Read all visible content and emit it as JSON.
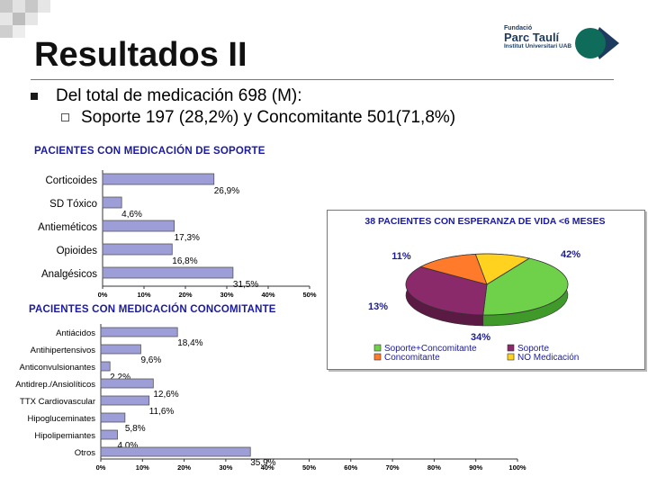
{
  "slide": {
    "title": "Resultados II",
    "bullet1": "Del total de medicación 698 (M):",
    "bullet2": "Soporte 197 (28,2%) y  Concomitante 501(71,8%)"
  },
  "logo": {
    "line1": "Fundació",
    "line2": "Parc Taulí",
    "line3": "Institut Universitari UAB",
    "colors": {
      "teal": "#0f6b5a",
      "navy": "#1d3a5f"
    }
  },
  "chart_data": [
    {
      "type": "bar",
      "orientation": "horizontal",
      "title": "PACIENTES CON MEDICACIÓN DE SOPORTE",
      "categories": [
        "Corticoides",
        "SD Tóxico",
        "Antieméticos",
        "Opioides",
        "Analgésicos"
      ],
      "values": [
        26.9,
        4.6,
        17.3,
        16.8,
        31.5
      ],
      "value_labels": [
        "26,9%",
        "4,6%",
        "17,3%",
        "16,8%",
        "31,5%"
      ],
      "xlim": [
        0,
        50
      ],
      "ticks": [
        "0%",
        "10%",
        "20%",
        "30%",
        "40%",
        "50%"
      ]
    },
    {
      "type": "bar",
      "orientation": "horizontal",
      "title": "PACIENTES CON MEDICACIÓN CONCOMITANTE",
      "categories": [
        "Antiácidos",
        "Antihipertensivos",
        "Anticonvulsionantes",
        "Antidrep./Ansiolíticos",
        "TTX Cardiovascular",
        "Hipogluceminates",
        "Hipolipemiantes",
        "Otros"
      ],
      "values": [
        18.4,
        9.6,
        2.2,
        12.6,
        11.6,
        5.8,
        4.0,
        35.9
      ],
      "value_labels": [
        "18,4%",
        "9,6%",
        "2,2%",
        "12,6%",
        "11,6%",
        "5,8%",
        "4,0%",
        "35,9%"
      ],
      "xlim": [
        0,
        100
      ],
      "ticks": [
        "0%",
        "10%",
        "20%",
        "30%",
        "40%",
        "50%",
        "60%",
        "70%",
        "80%",
        "90%",
        "100%"
      ]
    },
    {
      "type": "pie",
      "title": "38 PACIENTES CON ESPERANZA DE VIDA <6 MESES",
      "slices": [
        {
          "label": "Soporte+Concomitante",
          "value": 42,
          "text": "42%",
          "color": "#6fd04a"
        },
        {
          "label": "Soporte",
          "value": 34,
          "text": "34%",
          "color": "#8a2a6a"
        },
        {
          "label": "Concomitante",
          "value": 13,
          "text": "13%",
          "color": "#ff7a2a"
        },
        {
          "label": "NO Medicación",
          "value": 11,
          "text": "11%",
          "color": "#ffd21f"
        }
      ],
      "legend_position": "bottom"
    }
  ]
}
